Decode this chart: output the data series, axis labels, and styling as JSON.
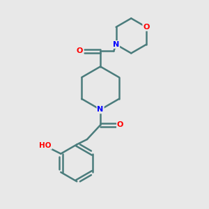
{
  "background_color": "#e8e8e8",
  "bond_color": "#4a7c7c",
  "bond_width": 1.8,
  "atom_colors": {
    "N": "#0000ff",
    "O": "#ff0000"
  },
  "figsize": [
    3.0,
    3.0
  ],
  "dpi": 100,
  "xlim": [
    0,
    10
  ],
  "ylim": [
    0,
    10
  ]
}
